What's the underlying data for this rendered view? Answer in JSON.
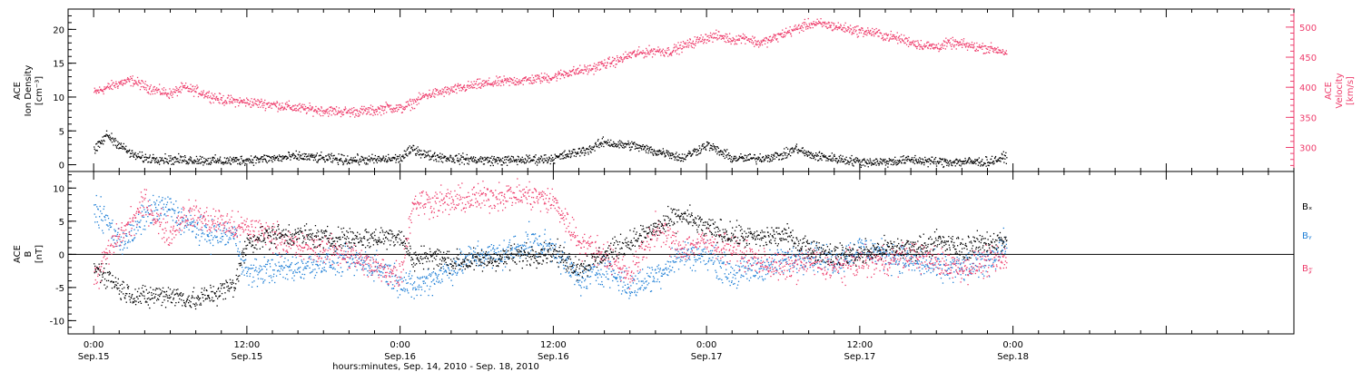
{
  "figure": {
    "colors": {
      "black": "#000000",
      "red": "#ee3d6c",
      "blue": "#1f7fd6"
    },
    "time_axis": {
      "title": "hours:minutes, Sep. 14, 2010 - Sep. 18, 2010",
      "hour_range": [
        -2,
        94
      ],
      "ticks": [
        {
          "hour": 0,
          "time": "0:00",
          "date": "Sep.15"
        },
        {
          "hour": 12,
          "time": "12:00",
          "date": "Sep.15"
        },
        {
          "hour": 24,
          "time": "0:00",
          "date": "Sep.16"
        },
        {
          "hour": 36,
          "time": "12:00",
          "date": "Sep.16"
        },
        {
          "hour": 48,
          "time": "0:00",
          "date": "Sep.17"
        },
        {
          "hour": 60,
          "time": "12:00",
          "date": "Sep.17"
        },
        {
          "hour": 72,
          "time": "0:00",
          "date": "Sep.18"
        }
      ]
    }
  },
  "chart_data": [
    {
      "type": "scatter",
      "panel": "top",
      "left_axis": {
        "label_lines": [
          "ACE",
          "Ion Density",
          "[cm⁻³]"
        ],
        "ylim": [
          -1,
          23
        ],
        "ticks": [
          0,
          5,
          10,
          15,
          20
        ],
        "minor_step": 1
      },
      "right_axis": {
        "label_lines": [
          "ACE",
          "Velocity",
          "[km/s]"
        ],
        "ylim": [
          260,
          530
        ],
        "ticks": [
          300,
          350,
          400,
          450,
          500
        ],
        "minor_step": 10,
        "color": "#ee3d6c"
      },
      "series": [
        {
          "axis": "left",
          "color": "#000000",
          "scatter": 0.5,
          "x": [
            0,
            1,
            2,
            3,
            4,
            5,
            6,
            8,
            10,
            12,
            14,
            16,
            18,
            20,
            22,
            24,
            25,
            26,
            28,
            30,
            32,
            34,
            36,
            37,
            38,
            39,
            40,
            41,
            42,
            43,
            44,
            45,
            46,
            47,
            48,
            49,
            50,
            52,
            54,
            55,
            56,
            58,
            60,
            62,
            64,
            66,
            68,
            70,
            71.5
          ],
          "y": [
            2,
            4.5,
            3,
            1.5,
            1,
            1,
            0.8,
            0.8,
            0.6,
            0.8,
            1,
            1.3,
            1,
            0.8,
            0.8,
            1,
            2.5,
            1.5,
            1,
            0.8,
            0.7,
            0.8,
            1,
            1.5,
            2,
            2.5,
            3.5,
            3,
            3,
            2.5,
            2,
            1.8,
            1,
            2,
            3,
            2,
            1,
            1,
            1.5,
            2.5,
            1.5,
            1,
            0.5,
            0.5,
            0.8,
            0.5,
            0.5,
            0.5,
            1.2
          ]
        },
        {
          "axis": "right",
          "color": "#ee3d6c",
          "scatter": 6,
          "x": [
            0,
            1,
            2,
            3,
            4,
            5,
            6,
            7,
            8,
            10,
            12,
            14,
            16,
            18,
            20,
            22,
            23,
            24,
            25,
            26,
            28,
            30,
            32,
            34,
            36,
            37,
            38,
            39,
            40,
            41,
            42,
            44,
            45,
            46,
            47,
            48,
            49,
            50,
            51,
            52,
            53,
            54,
            55,
            56,
            57,
            58,
            59,
            60,
            61,
            62,
            63,
            64,
            65,
            66,
            67,
            68,
            69,
            70,
            71,
            71.5
          ],
          "y": [
            392,
            400,
            408,
            412,
            402,
            395,
            390,
            400,
            395,
            380,
            376,
            372,
            366,
            362,
            360,
            362,
            368,
            365,
            375,
            388,
            396,
            405,
            410,
            413,
            418,
            425,
            428,
            432,
            440,
            445,
            455,
            462,
            460,
            468,
            476,
            484,
            486,
            480,
            484,
            474,
            480,
            490,
            498,
            506,
            506,
            502,
            498,
            494,
            492,
            486,
            482,
            476,
            470,
            468,
            474,
            472,
            468,
            466,
            462,
            457
          ]
        }
      ]
    },
    {
      "type": "scatter",
      "panel": "bottom",
      "left_axis": {
        "label_lines": [
          "ACE",
          "B",
          "[nT]"
        ],
        "ylim": [
          -12,
          12.5
        ],
        "ticks": [
          -10,
          -5,
          0,
          5,
          10
        ],
        "minor_step": 1
      },
      "zero_line": 0,
      "legend": {
        "placement": "right",
        "items": [
          {
            "label": "Bₓ",
            "color": "#000000"
          },
          {
            "label": "Bᵧ",
            "color": "#1f7fd6"
          },
          {
            "label": "B𝓏",
            "color": "#ee3d6c"
          }
        ]
      },
      "series": [
        {
          "name": "Bₓ",
          "color": "#000000",
          "scatter": 1.2,
          "x": [
            0,
            1,
            2,
            3,
            4,
            5,
            6,
            7,
            8,
            9,
            10,
            11,
            12,
            14,
            16,
            18,
            20,
            22,
            24,
            25,
            26,
            28,
            30,
            32,
            34,
            36,
            38,
            40,
            42,
            44,
            46,
            48,
            50,
            52,
            54,
            56,
            58,
            60,
            62,
            64,
            66,
            68,
            70,
            71.5
          ],
          "y": [
            -2,
            -3,
            -5,
            -6,
            -6.5,
            -6,
            -6,
            -6.5,
            -7,
            -6,
            -5.5,
            -4.5,
            2,
            3,
            3,
            2.5,
            2.5,
            2.5,
            3,
            -1,
            0,
            -1,
            -1,
            -0.5,
            0,
            0.5,
            -2,
            0,
            2,
            4,
            6,
            4,
            3,
            2.5,
            3,
            1,
            0,
            0,
            1,
            1,
            2,
            1,
            2,
            2
          ]
        },
        {
          "name": "Bᵧ",
          "color": "#1f7fd6",
          "scatter": 1.5,
          "x": [
            0,
            1,
            2,
            3,
            4,
            5,
            6,
            7,
            8,
            9,
            10,
            11,
            12,
            14,
            16,
            18,
            20,
            22,
            24,
            25,
            26,
            28,
            30,
            32,
            34,
            36,
            38,
            40,
            42,
            44,
            46,
            48,
            50,
            52,
            54,
            56,
            58,
            60,
            62,
            64,
            66,
            68,
            70,
            71.5
          ],
          "y": [
            7,
            5,
            2,
            3,
            6,
            7,
            7,
            5,
            4,
            3,
            3,
            3,
            -3,
            -2,
            -2,
            -1,
            -1,
            -1.5,
            -4,
            -5,
            -4,
            -2,
            0,
            0,
            2,
            1,
            -4,
            -2,
            -5,
            -3,
            0,
            0,
            -3,
            -2,
            -1,
            0,
            -1,
            1,
            0,
            -1,
            -2,
            -2,
            -1,
            2
          ]
        },
        {
          "name": "B𝓏",
          "color": "#ee3d6c",
          "scatter": 1.5,
          "x": [
            0,
            1,
            2,
            3,
            4,
            5,
            6,
            7,
            8,
            9,
            10,
            11,
            12,
            14,
            16,
            18,
            20,
            22,
            24,
            25,
            26,
            28,
            30,
            32,
            34,
            36,
            38,
            40,
            42,
            44,
            46,
            48,
            50,
            52,
            54,
            56,
            58,
            60,
            62,
            64,
            66,
            68,
            70,
            71.5
          ],
          "y": [
            -4,
            0,
            3,
            5,
            8,
            5,
            3,
            6,
            6,
            5,
            5,
            4,
            4,
            3,
            1,
            1,
            0,
            -2,
            -3,
            8,
            8,
            8,
            8.5,
            9,
            9,
            8,
            2,
            0,
            -3,
            4,
            1,
            2,
            1,
            -1,
            -2,
            -1,
            -2,
            -1,
            -1,
            0,
            -1,
            -2,
            -1,
            -1
          ]
        }
      ]
    }
  ]
}
